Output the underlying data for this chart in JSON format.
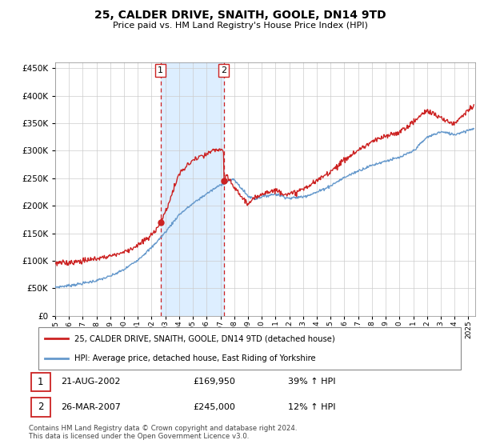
{
  "title": "25, CALDER DRIVE, SNAITH, GOOLE, DN14 9TD",
  "subtitle": "Price paid vs. HM Land Registry's House Price Index (HPI)",
  "legend_line1": "25, CALDER DRIVE, SNAITH, GOOLE, DN14 9TD (detached house)",
  "legend_line2": "HPI: Average price, detached house, East Riding of Yorkshire",
  "footnote": "Contains HM Land Registry data © Crown copyright and database right 2024.\nThis data is licensed under the Open Government Licence v3.0.",
  "hpi_color": "#6699cc",
  "price_color": "#cc2222",
  "highlight_color": "#ddeeff",
  "vline_color": "#cc2222",
  "sale1_year": 2002.64,
  "sale2_year": 2007.23,
  "sale1_price": 169950,
  "sale2_price": 245000,
  "ylim": [
    0,
    460000
  ],
  "yticks": [
    0,
    50000,
    100000,
    150000,
    200000,
    250000,
    300000,
    350000,
    400000,
    450000
  ],
  "xlim": [
    1995.0,
    2025.5
  ]
}
